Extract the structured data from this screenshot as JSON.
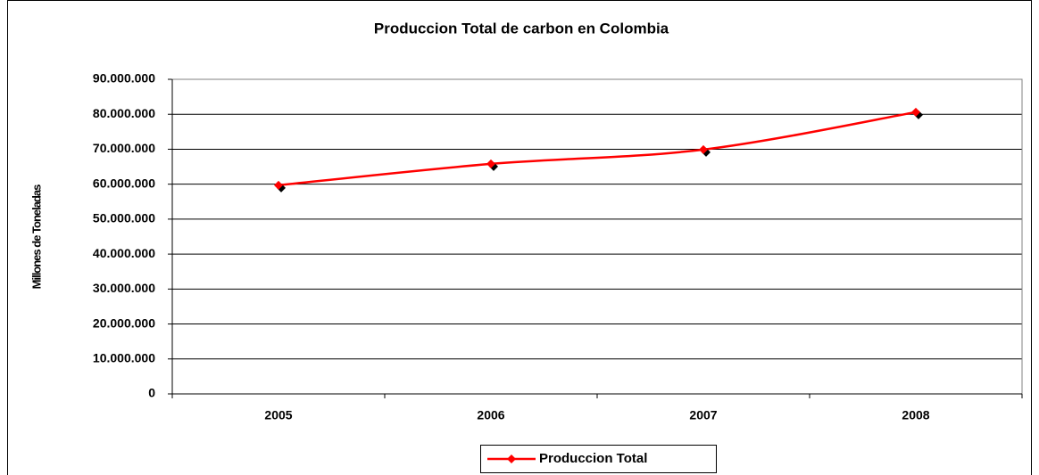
{
  "chart_data": {
    "type": "line",
    "title": "Produccion Total de carbon en Colombia",
    "y_label": "Millones de Toneladas",
    "categories": [
      "2005",
      "2006",
      "2007",
      "2008"
    ],
    "series": [
      {
        "name": "Produccion Total",
        "color": "#ff0000",
        "values": [
          59700000,
          65800000,
          69900000,
          80600000
        ]
      }
    ],
    "ylim": [
      0,
      90000000
    ],
    "yticks": [
      0,
      {
        "value": 10000000,
        "label": "10.000.000"
      },
      {
        "value": 20000000,
        "label": "20.000.000"
      },
      {
        "value": 30000000,
        "label": "30.000.000"
      },
      {
        "value": 40000000,
        "label": "40.000.000"
      },
      {
        "value": 50000000,
        "label": "50.000.000"
      },
      {
        "value": 60000000,
        "label": "60.000.000"
      },
      {
        "value": 70000000,
        "label": "70.000.000"
      },
      {
        "value": 80000000,
        "label": "80.000.000"
      },
      {
        "value": 90000000,
        "label": "90.000.000"
      }
    ],
    "grid": true,
    "legend": "bottom"
  }
}
